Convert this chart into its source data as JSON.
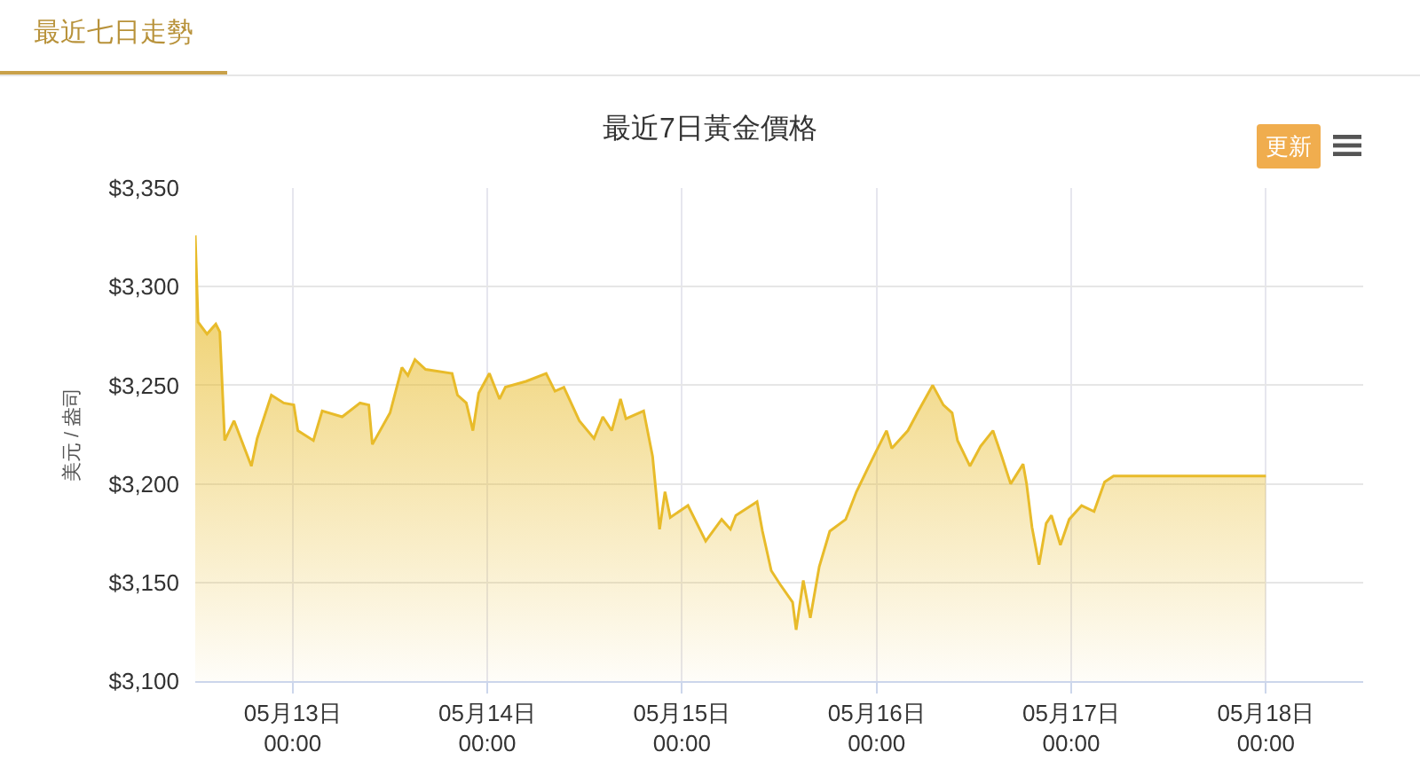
{
  "chart_data": {
    "type": "area",
    "title": "最近7日黃金價格",
    "ylabel": "美元 / 盎司",
    "annotations": [
      "最近七日走勢",
      "更新"
    ],
    "x": [
      "--05-12T12:00",
      "--05-12T12:21",
      "--05-12T13:27",
      "--05-12T14:32",
      "--05-12T15:02",
      "--05-12T15:38",
      "--05-12T16:47",
      "--05-12T18:55",
      "--05-12T19:38",
      "--05-12T21:23",
      "--05-12T22:55",
      "--05-13T00:09",
      "--05-13T00:39",
      "--05-13T02:34",
      "--05-13T03:39",
      "--05-13T06:07",
      "--05-13T08:19",
      "--05-13T09:24",
      "--05-13T09:50",
      "--05-13T12:01",
      "--05-13T13:29",
      "--05-13T14:13",
      "--05-13T15:05",
      "--05-13T16:24",
      "--05-13T19:40",
      "--05-13T20:20",
      "--05-13T21:25",
      "--05-13T22:14",
      "--05-13T22:57",
      "--05-14T00:16",
      "--05-14T01:31",
      "--05-14T02:14",
      "--05-14T04:47",
      "--05-14T07:16",
      "--05-14T08:21",
      "--05-14T09:27",
      "--05-14T11:21",
      "--05-14T13:10",
      "--05-14T14:15",
      "--05-14T15:21",
      "--05-14T16:26",
      "--05-14T17:06",
      "--05-14T19:17",
      "--05-14T20:23",
      "--05-14T21:15",
      "--05-14T21:55",
      "--05-14T22:34",
      "--05-15T00:45",
      "--05-15T02:56",
      "--05-15T04:54",
      "--05-15T05:59",
      "--05-15T06:39",
      "--05-15T09:16",
      "--05-15T09:56",
      "--05-15T11:01",
      "--05-15T12:07",
      "--05-15T13:39",
      "--05-15T14:05",
      "--05-15T14:58",
      "--05-15T15:50",
      "--05-15T16:56",
      "--05-15T18:14",
      "--05-15T20:12",
      "--05-15T21:31",
      "--05-15T23:03",
      "--05-16T00:08",
      "--05-16T01:14",
      "--05-16T01:53",
      "--05-16T03:52",
      "--05-16T05:10",
      "--05-16T06:55",
      "--05-16T08:14",
      "--05-16T09:19",
      "--05-16T09:59",
      "--05-16T11:31",
      "--05-16T12:49",
      "--05-16T14:21",
      "--05-16T15:26",
      "--05-16T16:32",
      "--05-16T18:04",
      "--05-16T18:30",
      "--05-16T19:10",
      "--05-16T20:02",
      "--05-16T20:55",
      "--05-16T21:34",
      "--05-16T22:40",
      "--05-16T23:45",
      "--05-17T01:17",
      "--05-17T02:49",
      "--05-17T04:07",
      "--05-17T05:13",
      "--05-18T00:00"
    ],
    "series": [
      {
        "color": "#e8bb2a",
        "values": [
          3326,
          3282,
          3276,
          3281,
          3277,
          3222,
          3232,
          3209,
          3223,
          3245,
          3241,
          3240,
          3227,
          3222,
          3237,
          3234,
          3241,
          3240,
          3220,
          3236,
          3259,
          3255,
          3263,
          3258,
          3256,
          3245,
          3241,
          3227,
          3246,
          3256,
          3243,
          3249,
          3252,
          3256,
          3247,
          3249,
          3232,
          3223,
          3234,
          3227,
          3243,
          3233,
          3237,
          3214,
          3177,
          3196,
          3183,
          3189,
          3171,
          3182,
          3177,
          3184,
          3191,
          3176,
          3156,
          3149,
          3140,
          3126,
          3151,
          3132,
          3158,
          3176,
          3182,
          3196,
          3209,
          3218,
          3227,
          3218,
          3227,
          3237,
          3250,
          3240,
          3236,
          3222,
          3209,
          3219,
          3227,
          3214,
          3200,
          3210,
          3200,
          3178,
          3159,
          3180,
          3184,
          3169,
          3182,
          3189,
          3186,
          3201,
          3204,
          3204
        ]
      }
    ],
    "xlim": [
      "--05-12T12:00",
      "--05-18T12:00"
    ],
    "xticks": [
      {
        "value": "--05-13T00:00",
        "label": "05月13日\n00:00"
      },
      {
        "value": "--05-14T00:00",
        "label": "05月14日\n00:00"
      },
      {
        "value": "--05-15T00:00",
        "label": "05月15日\n00:00"
      },
      {
        "value": "--05-16T00:00",
        "label": "05月16日\n00:00"
      },
      {
        "value": "--05-17T00:00",
        "label": "05月17日\n00:00"
      },
      {
        "value": "--05-18T00:00",
        "label": "05月18日\n00:00"
      }
    ],
    "ylim": [
      3100,
      3350
    ],
    "yticks": [
      {
        "value": 3100,
        "label": "$3,100"
      },
      {
        "value": 3150,
        "label": "$3,150"
      },
      {
        "value": 3200,
        "label": "$3,200"
      },
      {
        "value": 3250,
        "label": "$3,250"
      },
      {
        "value": 3300,
        "label": "$3,300"
      },
      {
        "value": 3350,
        "label": "$3,350"
      }
    ],
    "grid": true,
    "marker": "none",
    "line_style": "solid"
  }
}
